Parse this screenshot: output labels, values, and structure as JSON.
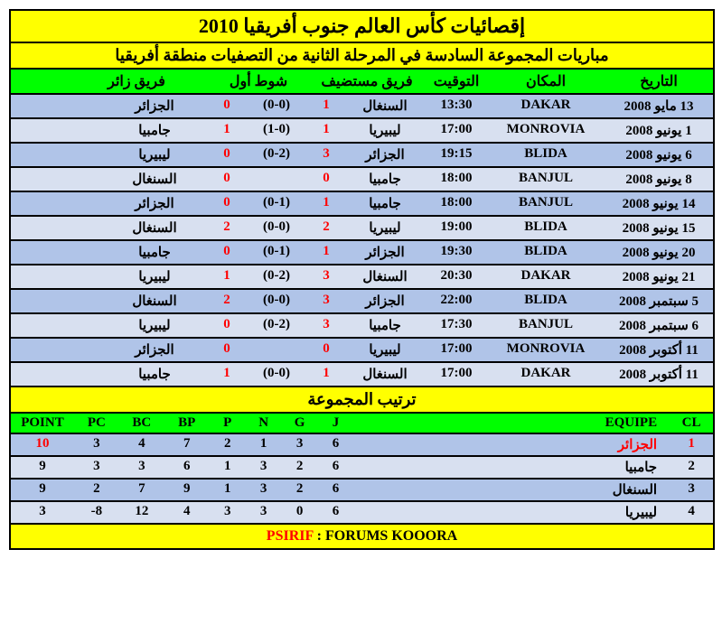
{
  "title": "إقصائيات كأس العالم جنوب أفريقيا 2010",
  "subtitle": "مباريات المجموعة السادسة في المرحلة الثانية من التصفيات منطقة أفريقيا",
  "colors": {
    "header_bg": "#ffff00",
    "green_bg": "#00ff00",
    "row_dark": "#b0c4e8",
    "row_light": "#d8e0f0",
    "score_color": "#ff0000"
  },
  "match_headers": {
    "date": "التاريخ",
    "venue": "المكان",
    "time": "التوقيت",
    "home": "فريق مستضيف",
    "ht": "شوط أول",
    "away": "فريق زائر"
  },
  "matches": [
    {
      "date": "13 مايو 2008",
      "venue": "DAKAR",
      "time": "13:30",
      "home": "السنغال",
      "hs": "1",
      "ht": "(0-0)",
      "as": "0",
      "away": "الجزائر"
    },
    {
      "date": "1 يونيو 2008",
      "venue": "MONROVIA",
      "time": "17:00",
      "home": "ليبيريا",
      "hs": "1",
      "ht": "(1-0)",
      "as": "1",
      "away": "جامبيا"
    },
    {
      "date": "6 يونيو 2008",
      "venue": "BLIDA",
      "time": "19:15",
      "home": "الجزائر",
      "hs": "3",
      "ht": "(0-2)",
      "as": "0",
      "away": "ليبيريا"
    },
    {
      "date": "8 يونيو 2008",
      "venue": "BANJUL",
      "time": "18:00",
      "home": "جامبيا",
      "hs": "0",
      "ht": "",
      "as": "0",
      "away": "السنغال"
    },
    {
      "date": "14 يونيو 2008",
      "venue": "BANJUL",
      "time": "18:00",
      "home": "جامبيا",
      "hs": "1",
      "ht": "(0-1)",
      "as": "0",
      "away": "الجزائر"
    },
    {
      "date": "15 يونيو 2008",
      "venue": "BLIDA",
      "time": "19:00",
      "home": "ليبيريا",
      "hs": "2",
      "ht": "(0-0)",
      "as": "2",
      "away": "السنغال"
    },
    {
      "date": "20 يونيو 2008",
      "venue": "BLIDA",
      "time": "19:30",
      "home": "الجزائر",
      "hs": "1",
      "ht": "(0-1)",
      "as": "0",
      "away": "جامبيا"
    },
    {
      "date": "21 يونيو 2008",
      "venue": "DAKAR",
      "time": "20:30",
      "home": "السنغال",
      "hs": "3",
      "ht": "(0-2)",
      "as": "1",
      "away": "ليبيريا"
    },
    {
      "date": "5 سبتمبر 2008",
      "venue": "BLIDA",
      "time": "22:00",
      "home": "الجزائر",
      "hs": "3",
      "ht": "(0-0)",
      "as": "2",
      "away": "السنغال"
    },
    {
      "date": "6 سبتمبر 2008",
      "venue": "BANJUL",
      "time": "17:30",
      "home": "جامبيا",
      "hs": "3",
      "ht": "(0-2)",
      "as": "0",
      "away": "ليبيريا"
    },
    {
      "date": "11 أكتوبر 2008",
      "venue": "MONROVIA",
      "time": "17:00",
      "home": "ليبيريا",
      "hs": "0",
      "ht": "",
      "as": "0",
      "away": "الجزائر"
    },
    {
      "date": "11 أكتوبر 2008",
      "venue": "DAKAR",
      "time": "17:00",
      "home": "السنغال",
      "hs": "1",
      "ht": "(0-0)",
      "as": "1",
      "away": "جامبيا"
    }
  ],
  "standings_title": "ترتيب المجموعة",
  "standings_headers": {
    "point": "POINT",
    "pc": "PC",
    "bc": "BC",
    "bp": "BP",
    "p": "P",
    "n": "N",
    "g": "G",
    "j": "J",
    "equipe": "EQUIPE",
    "cl": "CL"
  },
  "standings": [
    {
      "point": "10",
      "pc": "3",
      "bc": "4",
      "bp": "7",
      "p": "2",
      "n": "1",
      "g": "3",
      "j": "6",
      "equipe": "الجزائر",
      "cl": "1",
      "hl": true
    },
    {
      "point": "9",
      "pc": "3",
      "bc": "3",
      "bp": "6",
      "p": "1",
      "n": "3",
      "g": "2",
      "j": "6",
      "equipe": "جامبيا",
      "cl": "2",
      "hl": false
    },
    {
      "point": "9",
      "pc": "2",
      "bc": "7",
      "bp": "9",
      "p": "1",
      "n": "3",
      "g": "2",
      "j": "6",
      "equipe": "السنغال",
      "cl": "3",
      "hl": false
    },
    {
      "point": "3",
      "pc": "-8",
      "bc": "12",
      "bp": "4",
      "p": "3",
      "n": "3",
      "g": "0",
      "j": "6",
      "equipe": "ليبيريا",
      "cl": "4",
      "hl": false
    }
  ],
  "footer": {
    "brand": "PSIRIF",
    "sep": " : ",
    "site": "FORUMS KOOORA"
  }
}
